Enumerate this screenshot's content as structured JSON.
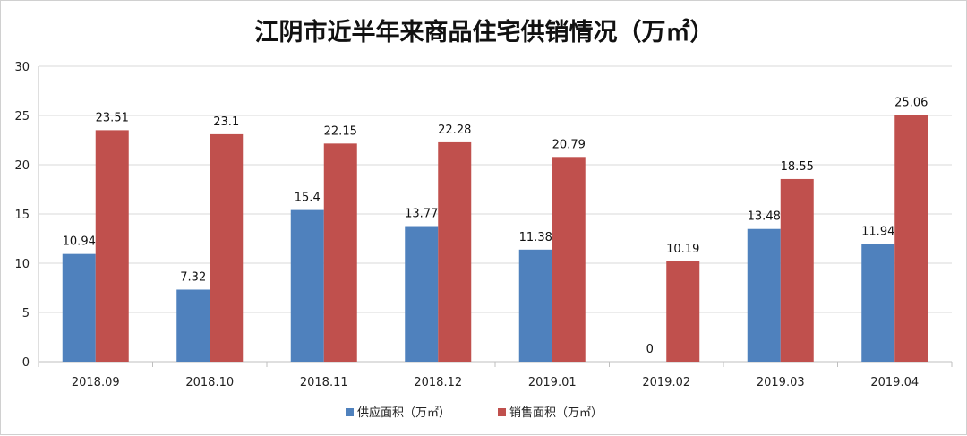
{
  "chart_data": {
    "type": "bar",
    "title": "江阴市近半年来商品住宅供销情况（万㎡）",
    "categories": [
      "2018.09",
      "2018.10",
      "2018.11",
      "2018.12",
      "2019.01",
      "2019.02",
      "2019.03",
      "2019.04"
    ],
    "series": [
      {
        "name": "供应面积（万㎡）",
        "color": "#4f81bd",
        "values": [
          10.94,
          7.32,
          15.4,
          13.77,
          11.38,
          0,
          13.48,
          11.94
        ],
        "labels": [
          "10.94",
          "7.32",
          "15.4",
          "13.77",
          "11.38",
          "0",
          "13.48",
          "11.94"
        ]
      },
      {
        "name": "销售面积（万㎡）",
        "color": "#c0504d",
        "values": [
          23.51,
          23.1,
          22.15,
          22.28,
          20.79,
          10.19,
          18.55,
          25.06
        ],
        "labels": [
          "23.51",
          "23.1",
          "22.15",
          "22.28",
          "20.79",
          "10.19",
          "18.55",
          "25.06"
        ]
      }
    ],
    "ylim": [
      0,
      30
    ],
    "yticks": [
      "0",
      "5",
      "10",
      "15",
      "20",
      "25",
      "30"
    ],
    "grid": true,
    "legend": "bottom",
    "xlabel": "",
    "ylabel": ""
  }
}
